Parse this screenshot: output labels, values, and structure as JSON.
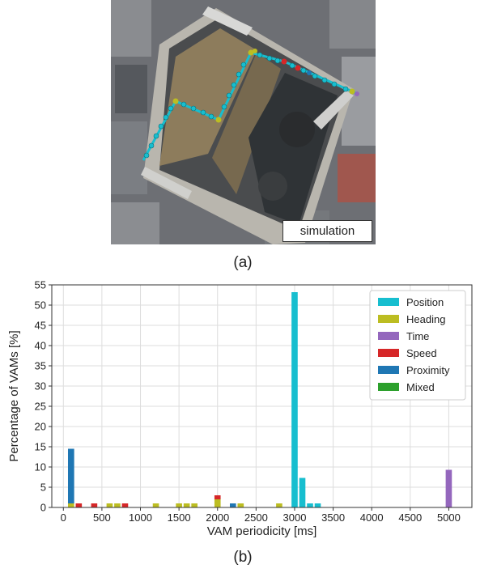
{
  "map_panel": {
    "overlay_label": "simulation",
    "caption": "(a)",
    "route_marker_colors": {
      "position": "#17becf",
      "heading": "#bcbd22",
      "speed": "#d62728",
      "proximity": "#1f77b4"
    }
  },
  "chart_caption": "(b)",
  "chart_data": {
    "type": "bar",
    "xlabel": "VAM periodicity [ms]",
    "ylabel": "Percentage of VAMs [%]",
    "xlim": [
      -150,
      5300
    ],
    "ylim": [
      0,
      55
    ],
    "xticks": [
      0,
      500,
      1000,
      1500,
      2000,
      2500,
      3000,
      3500,
      4000,
      4500,
      5000
    ],
    "yticks": [
      0,
      5,
      10,
      15,
      20,
      25,
      30,
      35,
      40,
      45,
      50,
      55
    ],
    "grid": true,
    "stacked": true,
    "bar_width_ms": 80,
    "legend_position": "top-right",
    "series": [
      {
        "name": "Position",
        "color": "#17becf",
        "points": [
          [
            3000,
            53.2
          ],
          [
            3100,
            7.3
          ],
          [
            3200,
            1.0
          ],
          [
            3300,
            1.0
          ]
        ]
      },
      {
        "name": "Heading",
        "color": "#bcbd22",
        "points": [
          [
            100,
            1.0
          ],
          [
            600,
            1.0
          ],
          [
            700,
            1.0
          ],
          [
            1200,
            1.0
          ],
          [
            1500,
            1.0
          ],
          [
            1600,
            1.0
          ],
          [
            1700,
            1.0
          ],
          [
            2000,
            2.0
          ],
          [
            2300,
            1.0
          ],
          [
            2800,
            1.0
          ]
        ]
      },
      {
        "name": "Time",
        "color": "#9467bd",
        "points": [
          [
            5000,
            9.3
          ]
        ]
      },
      {
        "name": "Speed",
        "color": "#d62728",
        "points": [
          [
            200,
            1.0
          ],
          [
            400,
            1.0
          ],
          [
            800,
            1.0
          ],
          [
            2000,
            1.0
          ]
        ]
      },
      {
        "name": "Proximity",
        "color": "#1f77b4",
        "points": [
          [
            100,
            13.5
          ],
          [
            2200,
            1.0
          ]
        ]
      },
      {
        "name": "Mixed",
        "color": "#2ca02c",
        "points": []
      }
    ]
  }
}
